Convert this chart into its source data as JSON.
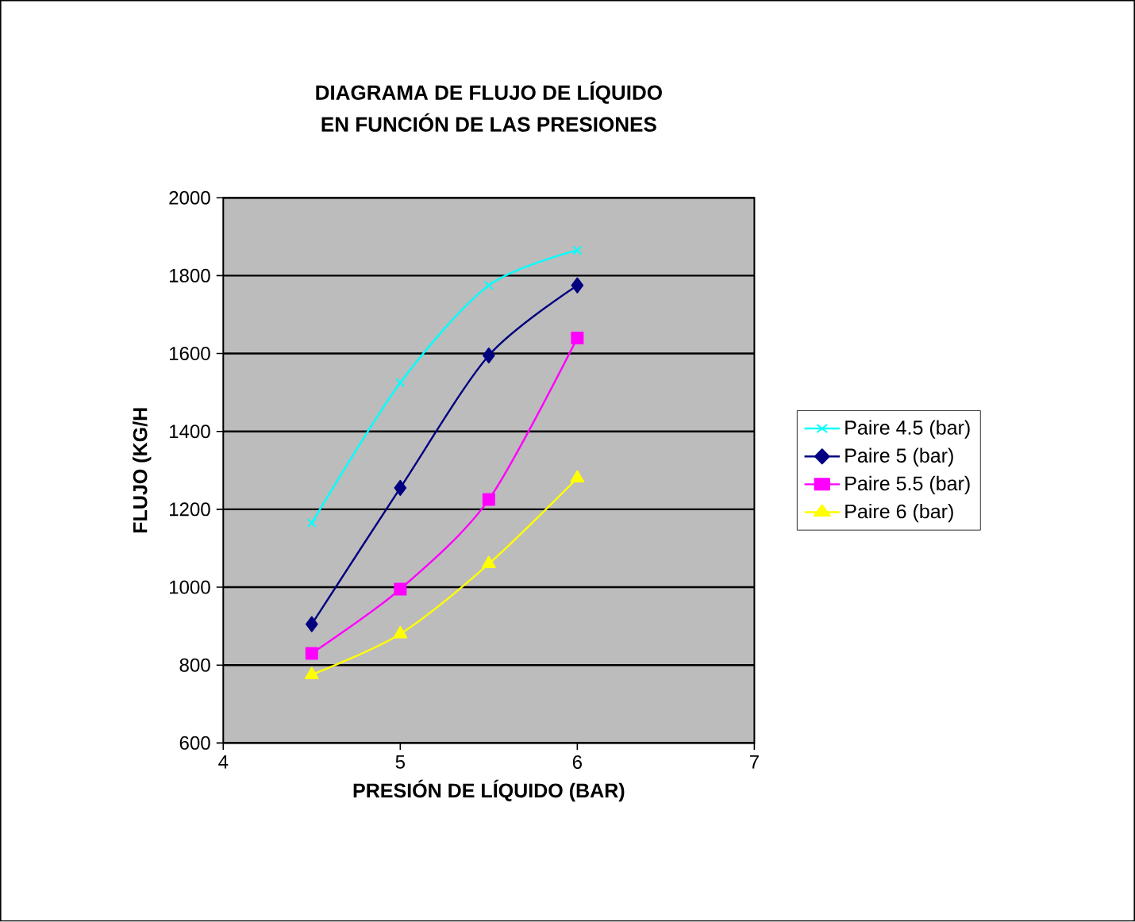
{
  "chart_data": {
    "type": "line",
    "title": "DIAGRAMA DE FLUJO DE LÍQUIDO\nEN FUNCIÓN DE LAS PRESIONES",
    "xlabel": "PRESIÓN DE LÍQUIDO (BAR)",
    "ylabel": "FLUJO  (KG/H",
    "x": [
      4.5,
      5,
      5.5,
      6
    ],
    "series": [
      {
        "name": "Paire 4.5 (bar)",
        "color": "#00ffff",
        "marker": "cross",
        "values": [
          1165,
          1525,
          1775,
          1865
        ]
      },
      {
        "name": "Paire 5 (bar)",
        "color": "#000080",
        "marker": "diamond",
        "values": [
          905,
          1255,
          1595,
          1775
        ]
      },
      {
        "name": "Paire 5.5 (bar)",
        "color": "#ff00ff",
        "marker": "square",
        "values": [
          830,
          995,
          1225,
          1640
        ]
      },
      {
        "name": "Paire 6 (bar)",
        "color": "#ffff00",
        "marker": "triangle",
        "values": [
          775,
          880,
          1060,
          1280
        ]
      }
    ],
    "xlim": [
      4,
      7
    ],
    "xticks": [
      4,
      5,
      6,
      7
    ],
    "ylim": [
      600,
      2000
    ],
    "yticks": [
      600,
      800,
      1000,
      1200,
      1400,
      1600,
      1800,
      2000
    ],
    "grid": "y",
    "legend": "right",
    "line_style": "solid"
  }
}
